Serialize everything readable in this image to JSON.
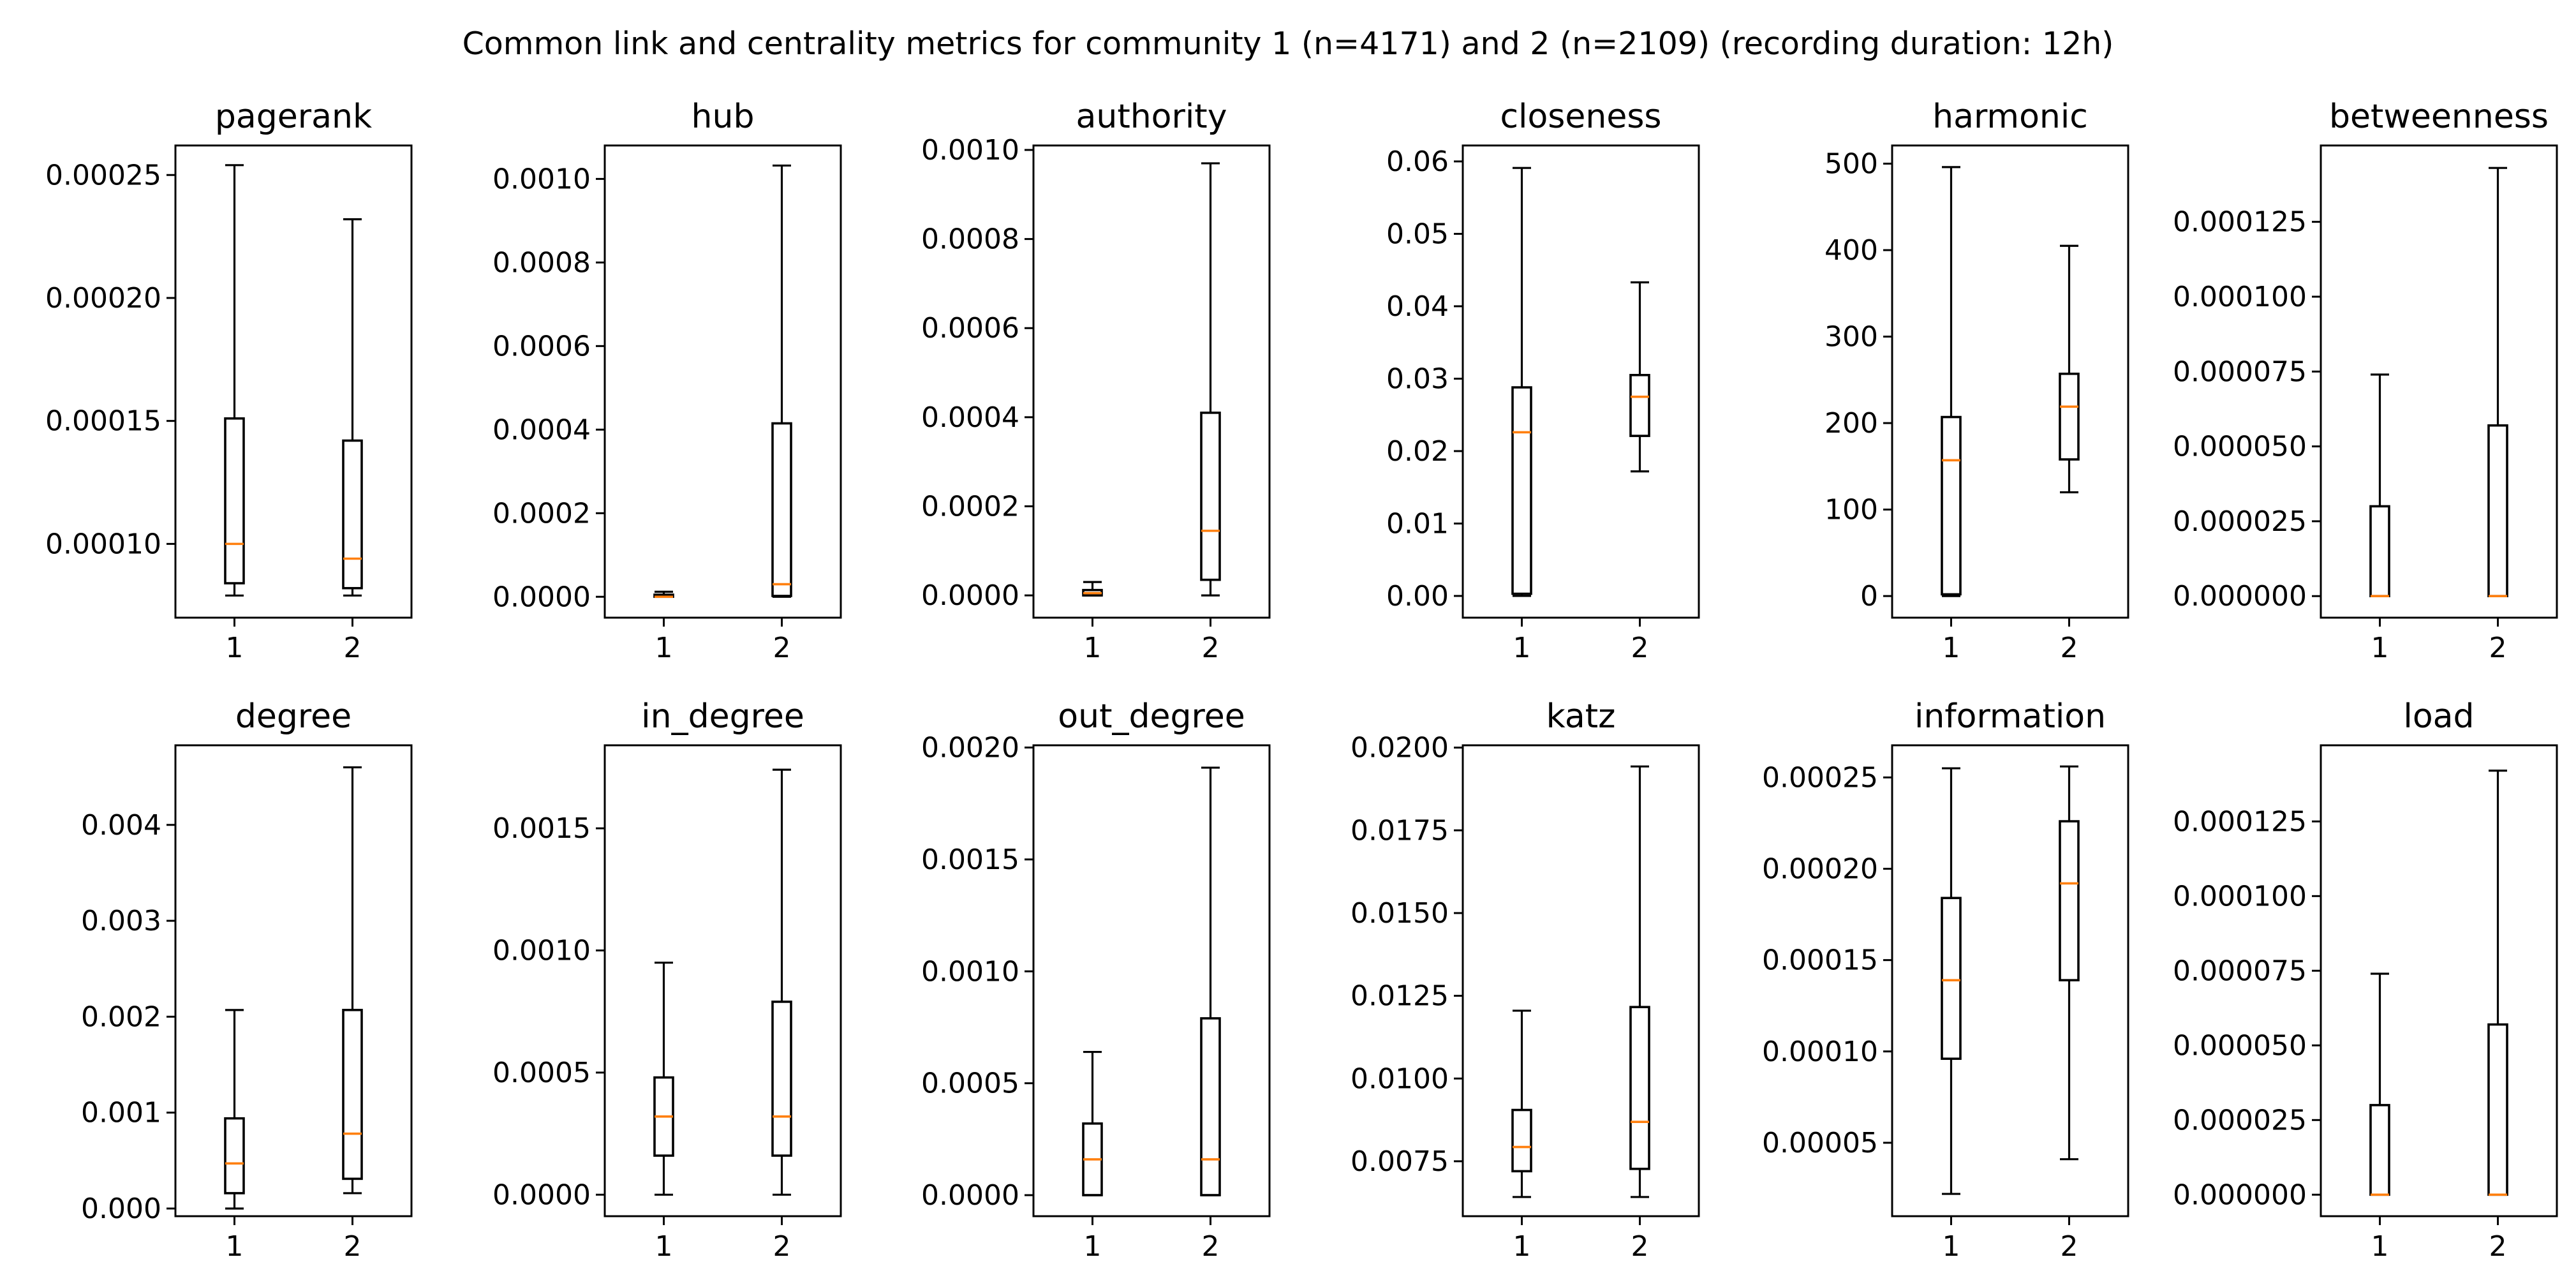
{
  "colors": {
    "box": "#000000",
    "median": "#ff7f0e",
    "background": "#ffffff"
  },
  "chart_data": {
    "type": "box",
    "title": "Common link and centrality metrics for community 1 (n=4171) and 2 (n=2109) (recording duration: 12h)",
    "categories": [
      "1",
      "2"
    ],
    "panels": [
      {
        "title": "pagerank",
        "ylim": [
          7e-05,
          0.000262
        ],
        "yticks": [
          0.0001,
          0.00015,
          0.0002,
          0.00025
        ],
        "ytick_labels": [
          "0.00010",
          "0.00015",
          "0.00020",
          "0.00025"
        ],
        "boxes": [
          {
            "label": "1",
            "whislo": 7.9e-05,
            "q1": 8.4e-05,
            "median": 0.0001,
            "q3": 0.000151,
            "whishi": 0.000254
          },
          {
            "label": "2",
            "whislo": 7.9e-05,
            "q1": 8.2e-05,
            "median": 9.4e-05,
            "q3": 0.000142,
            "whishi": 0.000232
          }
        ]
      },
      {
        "title": "hub",
        "ylim": [
          -5e-05,
          0.00108
        ],
        "yticks": [
          0.0,
          0.0002,
          0.0004,
          0.0006,
          0.0008,
          0.001
        ],
        "ytick_labels": [
          "0.0000",
          "0.0002",
          "0.0004",
          "0.0006",
          "0.0008",
          "0.0010"
        ],
        "boxes": [
          {
            "label": "1",
            "whislo": 0.0,
            "q1": 0.0,
            "median": 0.0,
            "q3": 5e-06,
            "whishi": 1.2e-05
          },
          {
            "label": "2",
            "whislo": 0.0,
            "q1": 2e-06,
            "median": 3e-05,
            "q3": 0.000415,
            "whishi": 0.001032
          }
        ]
      },
      {
        "title": "authority",
        "ylim": [
          -5e-05,
          0.00101
        ],
        "yticks": [
          0.0,
          0.0002,
          0.0004,
          0.0006,
          0.0008,
          0.001
        ],
        "ytick_labels": [
          "0.0000",
          "0.0002",
          "0.0004",
          "0.0006",
          "0.0008",
          "0.0010"
        ],
        "boxes": [
          {
            "label": "1",
            "whislo": 0.0,
            "q1": 0.0,
            "median": 5e-06,
            "q3": 1.2e-05,
            "whishi": 3e-05
          },
          {
            "label": "2",
            "whislo": 0.0,
            "q1": 3.5e-05,
            "median": 0.000145,
            "q3": 0.00041,
            "whishi": 0.00097
          }
        ]
      },
      {
        "title": "closeness",
        "ylim": [
          -0.003,
          0.0622
        ],
        "yticks": [
          0.0,
          0.01,
          0.02,
          0.03,
          0.04,
          0.05,
          0.06
        ],
        "ytick_labels": [
          "0.00",
          "0.01",
          "0.02",
          "0.03",
          "0.04",
          "0.05",
          "0.06"
        ],
        "boxes": [
          {
            "label": "1",
            "whislo": 0.0,
            "q1": 0.0003,
            "median": 0.0226,
            "q3": 0.0288,
            "whishi": 0.0591
          },
          {
            "label": "2",
            "whislo": 0.0172,
            "q1": 0.0221,
            "median": 0.0275,
            "q3": 0.0305,
            "whishi": 0.0433
          }
        ]
      },
      {
        "title": "harmonic",
        "ylim": [
          -25,
          521
        ],
        "yticks": [
          0,
          100,
          200,
          300,
          400,
          500
        ],
        "ytick_labels": [
          "0",
          "100",
          "200",
          "300",
          "400",
          "500"
        ],
        "boxes": [
          {
            "label": "1",
            "whislo": 0,
            "q1": 2,
            "median": 157,
            "q3": 207,
            "whishi": 496
          },
          {
            "label": "2",
            "whislo": 120,
            "q1": 158,
            "median": 219,
            "q3": 257,
            "whishi": 405
          }
        ]
      },
      {
        "title": "betweenness",
        "ylim": [
          -7.2e-06,
          0.0001505
        ],
        "yticks": [
          0.0,
          2.5e-05,
          5e-05,
          7.5e-05,
          0.0001,
          0.000125
        ],
        "ytick_labels": [
          "0.000000",
          "0.000025",
          "0.000050",
          "0.000075",
          "0.000100",
          "0.000125"
        ],
        "boxes": [
          {
            "label": "1",
            "whislo": 0.0,
            "q1": 0.0,
            "median": 0.0,
            "q3": 3e-05,
            "whishi": 7.4e-05
          },
          {
            "label": "2",
            "whislo": 0.0,
            "q1": 0.0,
            "median": 0.0,
            "q3": 5.7e-05,
            "whishi": 0.000143
          }
        ]
      },
      {
        "title": "degree",
        "ylim": [
          -8e-05,
          0.00483
        ],
        "yticks": [
          0.0,
          0.001,
          0.002,
          0.003,
          0.004
        ],
        "ytick_labels": [
          "0.000",
          "0.001",
          "0.002",
          "0.003",
          "0.004"
        ],
        "boxes": [
          {
            "label": "1",
            "whislo": 0.0,
            "q1": 0.00016,
            "median": 0.00047,
            "q3": 0.00094,
            "whishi": 0.00207
          },
          {
            "label": "2",
            "whislo": 0.00016,
            "q1": 0.00031,
            "median": 0.00078,
            "q3": 0.00207,
            "whishi": 0.0046
          }
        ]
      },
      {
        "title": "in_degree",
        "ylim": [
          -8.8e-05,
          0.00184
        ],
        "yticks": [
          0.0,
          0.0005,
          0.001,
          0.0015
        ],
        "ytick_labels": [
          "0.0000",
          "0.0005",
          "0.0010",
          "0.0015"
        ],
        "boxes": [
          {
            "label": "1",
            "whislo": 0.0,
            "q1": 0.00016,
            "median": 0.00032,
            "q3": 0.00048,
            "whishi": 0.00095
          },
          {
            "label": "2",
            "whislo": 0.0,
            "q1": 0.00016,
            "median": 0.00032,
            "q3": 0.00079,
            "whishi": 0.00174
          }
        ]
      },
      {
        "title": "out_degree",
        "ylim": [
          -9.4e-05,
          0.00201
        ],
        "yticks": [
          0.0,
          0.0005,
          0.001,
          0.0015,
          0.002
        ],
        "ytick_labels": [
          "0.0000",
          "0.0005",
          "0.0010",
          "0.0015",
          "0.0020"
        ],
        "boxes": [
          {
            "label": "1",
            "whislo": 0.0,
            "q1": 0.0,
            "median": 0.00016,
            "q3": 0.00032,
            "whishi": 0.00064
          },
          {
            "label": "2",
            "whislo": 0.0,
            "q1": 0.0,
            "median": 0.00016,
            "q3": 0.00079,
            "whishi": 0.00191
          }
        ]
      },
      {
        "title": "katz",
        "ylim": [
          0.00584,
          0.02007
        ],
        "yticks": [
          0.0075,
          0.01,
          0.0125,
          0.015,
          0.0175,
          0.02
        ],
        "ytick_labels": [
          "0.0075",
          "0.0100",
          "0.0125",
          "0.0150",
          "0.0175",
          "0.0200"
        ],
        "boxes": [
          {
            "label": "1",
            "whislo": 0.00642,
            "q1": 0.0072,
            "median": 0.00793,
            "q3": 0.00905,
            "whishi": 0.01205
          },
          {
            "label": "2",
            "whislo": 0.00642,
            "q1": 0.00727,
            "median": 0.00869,
            "q3": 0.01216,
            "whishi": 0.01943
          }
        ]
      },
      {
        "title": "information",
        "ylim": [
          9.8e-06,
          0.0002676
        ],
        "yticks": [
          5e-05,
          0.0001,
          0.00015,
          0.0002,
          0.00025
        ],
        "ytick_labels": [
          "0.00005",
          "0.00010",
          "0.00015",
          "0.00020",
          "0.00025"
        ],
        "boxes": [
          {
            "label": "1",
            "whislo": 2.2e-05,
            "q1": 9.6e-05,
            "median": 0.000139,
            "q3": 0.000184,
            "whishi": 0.000255
          },
          {
            "label": "2",
            "whislo": 4.1e-05,
            "q1": 0.000139,
            "median": 0.000192,
            "q3": 0.000226,
            "whishi": 0.000256
          }
        ]
      },
      {
        "title": "load",
        "ylim": [
          -7.2e-06,
          0.0001505
        ],
        "yticks": [
          0.0,
          2.5e-05,
          5e-05,
          7.5e-05,
          0.0001,
          0.000125
        ],
        "ytick_labels": [
          "0.000000",
          "0.000025",
          "0.000050",
          "0.000075",
          "0.000100",
          "0.000125"
        ],
        "boxes": [
          {
            "label": "1",
            "whislo": 0.0,
            "q1": 0.0,
            "median": 0.0,
            "q3": 3e-05,
            "whishi": 7.4e-05
          },
          {
            "label": "2",
            "whislo": 0.0,
            "q1": 0.0,
            "median": 0.0,
            "q3": 5.7e-05,
            "whishi": 0.000142
          }
        ]
      }
    ]
  }
}
